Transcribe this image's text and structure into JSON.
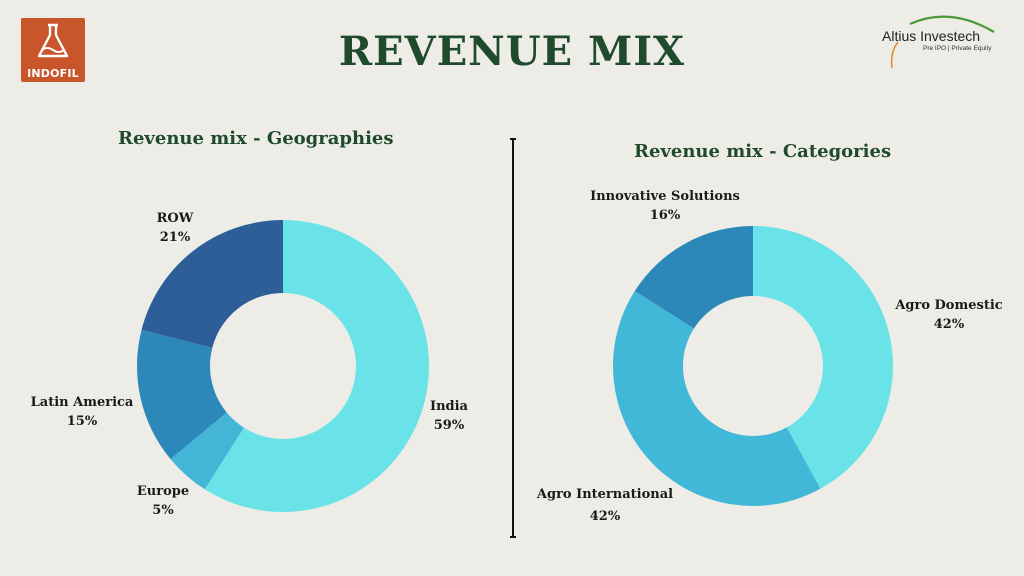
{
  "header": {
    "title": "REVENUE MIX",
    "left_logo_text": "INDOFIL",
    "right_logo_name": "Altius Investech",
    "right_logo_tagline": "Pre IPO | Private Equity"
  },
  "colors": {
    "background": "#edece6",
    "title_green": "#1f4b2c",
    "brand_orange": "#c9552a"
  },
  "chart_data": [
    {
      "type": "pie",
      "title": "Revenue mix - Geographies",
      "donut": true,
      "slices": [
        {
          "label": "India",
          "value": 59,
          "display": "59%",
          "color": "#69e3e7"
        },
        {
          "label": "Europe",
          "value": 5,
          "display": "5%",
          "color": "#44b5d7"
        },
        {
          "label": "Latin America",
          "value": 15,
          "display": "15%",
          "color": "#2b88b9"
        },
        {
          "label": "ROW",
          "value": 21,
          "display": "21%",
          "color": "#2d5e97"
        }
      ]
    },
    {
      "type": "pie",
      "title": "Revenue mix - Categories",
      "donut": true,
      "slices": [
        {
          "label": "Agro Domestic",
          "value": 42,
          "display": "42%",
          "color": "#69e3e7"
        },
        {
          "label": "Agro International",
          "value": 42,
          "display": "42%",
          "color": "#42b8d8"
        },
        {
          "label": "Innovative Solutions",
          "value": 16,
          "display": "16%",
          "color": "#2b88b9"
        }
      ]
    }
  ]
}
